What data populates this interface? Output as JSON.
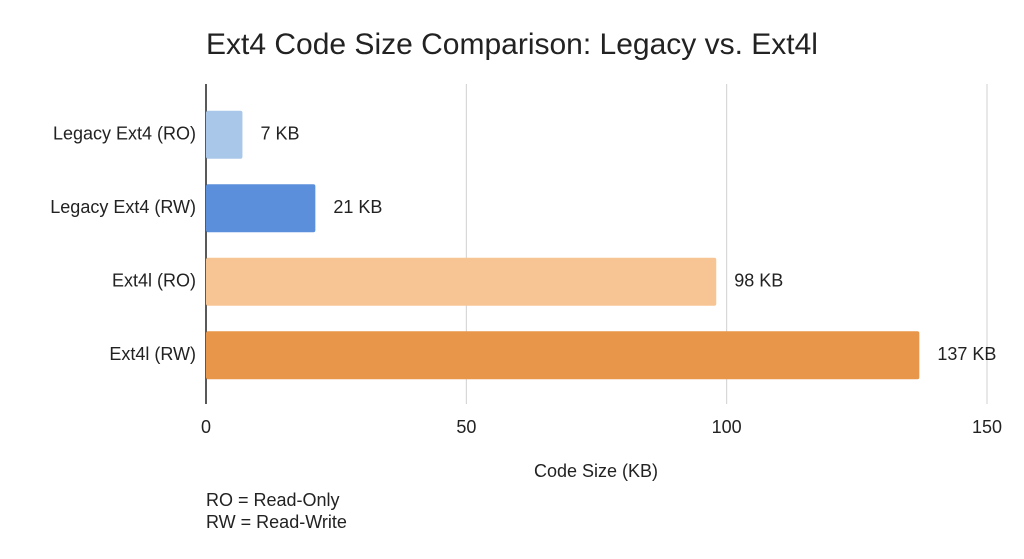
{
  "chart_data": {
    "type": "bar",
    "orientation": "horizontal",
    "title": "Ext4 Code Size Comparison: Legacy vs. Ext4l",
    "categories": [
      "Legacy Ext4 (RO)",
      "Legacy Ext4 (RW)",
      "Ext4l (RO)",
      "Ext4l (RW)"
    ],
    "values": [
      7,
      21,
      98,
      137
    ],
    "value_labels": [
      "7 KB",
      "21 KB",
      "98 KB",
      "137 KB"
    ],
    "colors": [
      "#a9c8e9",
      "#5b8fdb",
      "#f7c593",
      "#e8964a"
    ],
    "xlim": [
      0,
      150
    ],
    "xticks": [
      0,
      50,
      100,
      150
    ],
    "xlabel": "Code Size (KB)",
    "grid": true,
    "notes": [
      "RO = Read-Only",
      "RW = Read-Write"
    ]
  }
}
